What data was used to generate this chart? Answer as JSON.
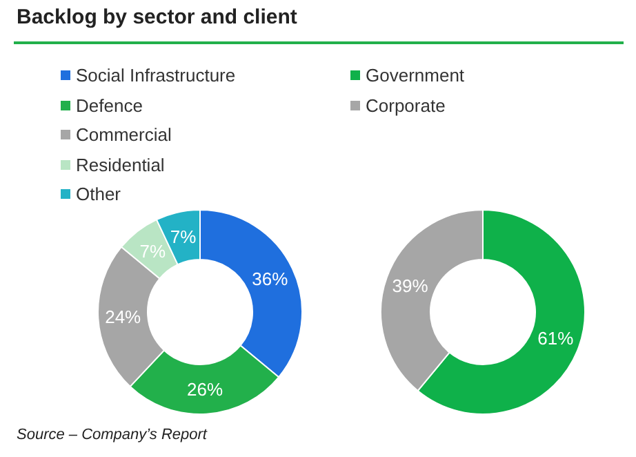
{
  "chart_data": [
    {
      "type": "donut",
      "title": "Backlog by sector and client",
      "categories": [
        "Social Infrastructure",
        "Defence",
        "Commercial",
        "Residential",
        "Other"
      ],
      "values": [
        36,
        26,
        24,
        7,
        7
      ],
      "value_labels": [
        "36%",
        "26%",
        "24%",
        "7%",
        "7%"
      ],
      "colors": [
        "#1f6fde",
        "#22b04b",
        "#a6a6a6",
        "#b9e5c4",
        "#23b2c6"
      ],
      "legend": "top",
      "annotations": [
        "Source – Company’s Report"
      ]
    },
    {
      "type": "donut",
      "categories": [
        "Government",
        "Corporate"
      ],
      "values": [
        61,
        39
      ],
      "value_labels": [
        "61%",
        "39%"
      ],
      "colors": [
        "#0fb14a",
        "#a6a6a6"
      ],
      "legend": "top"
    }
  ]
}
